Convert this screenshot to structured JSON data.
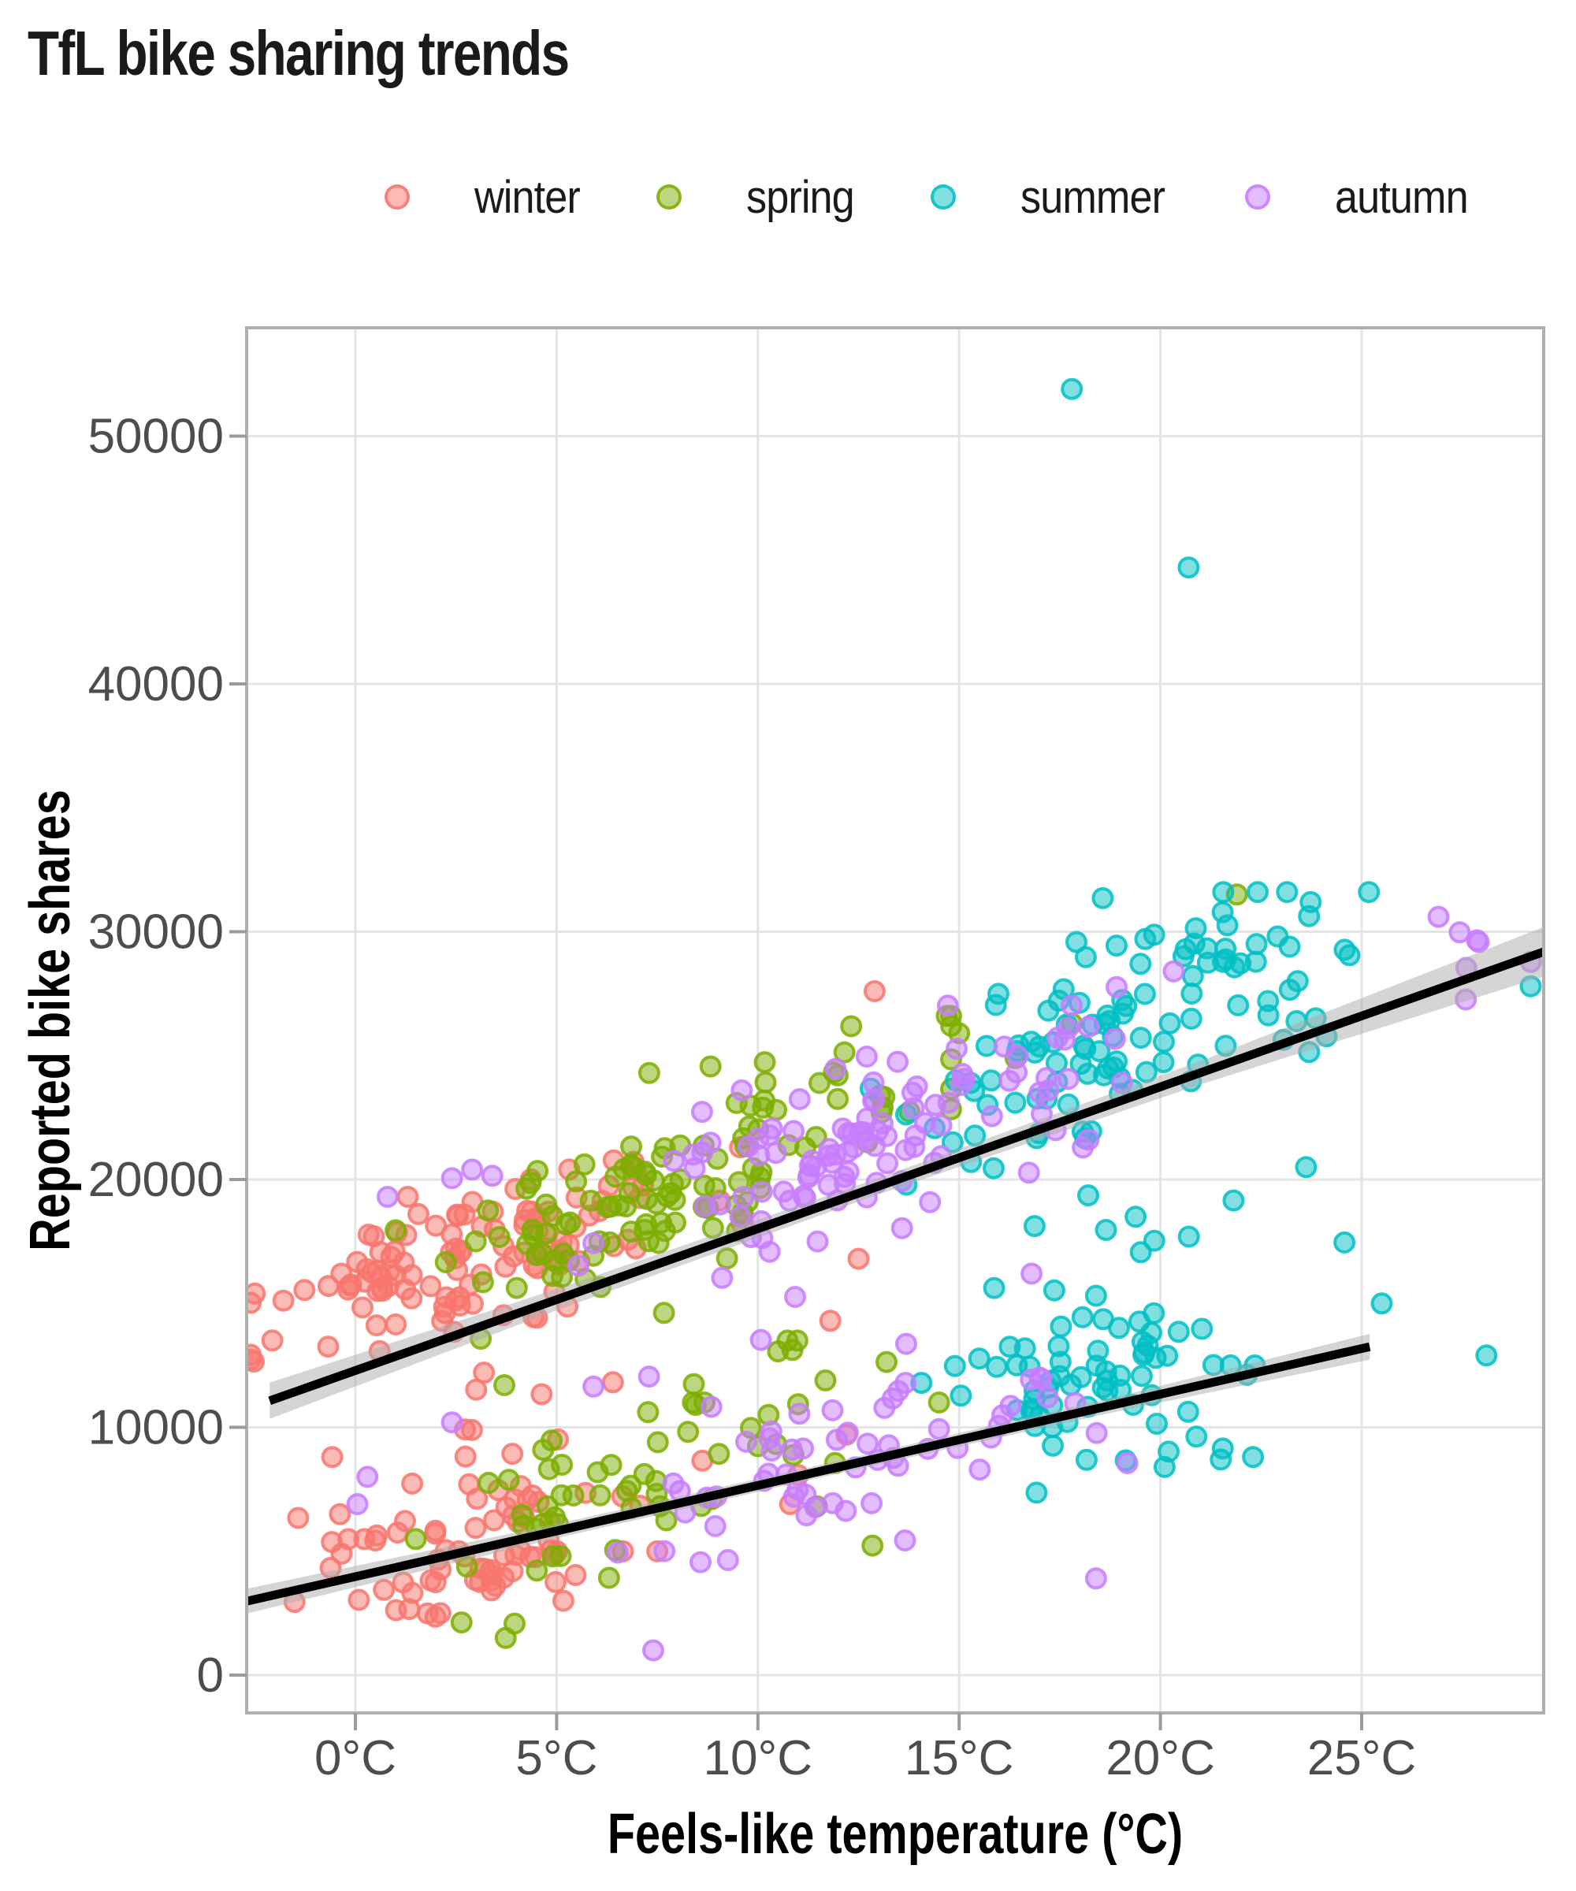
{
  "title": "TfL bike sharing trends",
  "legend": {
    "items": [
      {
        "label": "winter",
        "color": "#F8766D"
      },
      {
        "label": "spring",
        "color": "#7CAE00"
      },
      {
        "label": "summer",
        "color": "#00BFC4"
      },
      {
        "label": "autumn",
        "color": "#C77CFF"
      }
    ]
  },
  "axes": {
    "x": {
      "title": "Feels-like temperature (°C)",
      "tick_labels": [
        "0°C",
        "5°C",
        "10°C",
        "15°C",
        "20°C",
        "25°C"
      ],
      "tick_values": [
        0,
        5,
        10,
        15,
        20,
        25
      ],
      "range": [
        -2.7,
        29.5
      ]
    },
    "y": {
      "title": "Reported bike shares",
      "tick_labels": [
        "0",
        "10000",
        "20000",
        "30000",
        "40000",
        "50000"
      ],
      "tick_values": [
        0,
        10000,
        20000,
        30000,
        40000,
        50000
      ],
      "range": [
        -1500,
        54300
      ]
    }
  },
  "chart_data": {
    "type": "scatter",
    "x_unit": "°C",
    "grid": "major-only",
    "legend_position": "top",
    "description": "Daily TfL bike shares vs feels-like temperature, coloured by season; two clouds (high ~weekday band, low ~weekend band), each with a black linear trend line and grey confidence ribbon.",
    "series": [
      {
        "name": "winter",
        "color": "#F8766D",
        "clusters": [
          {
            "n": 118,
            "t": {
              "mean": 3.0,
              "sd": 2.6,
              "min": -2.6,
              "max": 11.5
            },
            "v": {
              "base": 15300,
              "slope": 520,
              "sd": 1350,
              "min": 11000,
              "max": 21300
            }
          },
          {
            "n": 48,
            "t": {
              "mean": 3.0,
              "sd": 2.5,
              "min": -2.6,
              "max": 11.5
            },
            "v": {
              "base": 5200,
              "slope": 350,
              "sd": 1100,
              "min": 3600,
              "max": 9600
            }
          },
          {
            "n": 30,
            "t": {
              "mean": 2.8,
              "sd": 2.2,
              "min": -2.2,
              "max": 7.5
            },
            "v": {
              "base": 2900,
              "slope": 250,
              "sd": 800,
              "min": 1700,
              "max": 5000
            }
          },
          {
            "n": 8,
            "t": {
              "mean": 3.5,
              "sd": 2.2,
              "min": -1.0,
              "max": 9.0
            },
            "v": {
              "base": 10300,
              "slope": 250,
              "sd": 900,
              "min": 8800,
              "max": 12600
            }
          }
        ],
        "points_extra": [
          [
            12.9,
            27600
          ],
          [
            -2.5,
            15400
          ],
          [
            11.8,
            14300
          ],
          [
            12.5,
            16800
          ],
          [
            10.8,
            6900
          ],
          [
            12.2,
            9700
          ],
          [
            9.6,
            18200
          ]
        ]
      },
      {
        "name": "spring",
        "color": "#7CAE00",
        "clusters": [
          {
            "n": 118,
            "t": {
              "mean": 8.2,
              "sd": 2.8,
              "min": 1.0,
              "max": 14.8
            },
            "v": {
              "base": 13800,
              "slope": 760,
              "sd": 1750,
              "min": 12000,
              "max": 26600
            }
          },
          {
            "n": 52,
            "t": {
              "mean": 7.6,
              "sd": 2.6,
              "min": 1.5,
              "max": 14.5
            },
            "v": {
              "base": 3300,
              "slope": 520,
              "sd": 1600,
              "min": 1500,
              "max": 11000
            }
          },
          {
            "n": 10,
            "t": {
              "mean": 8.0,
              "sd": 3.0,
              "min": 2.0,
              "max": 14.0
            },
            "v": {
              "base": 9000,
              "slope": 300,
              "sd": 1200,
              "min": 6500,
              "max": 13500
            }
          }
        ],
        "points_extra": [
          [
            21.9,
            31500
          ],
          [
            17.8,
            26300
          ],
          [
            16.4,
            24900
          ],
          [
            15.0,
            25900
          ],
          [
            7.3,
            24300
          ],
          [
            3.7,
            11700
          ]
        ]
      },
      {
        "name": "summer",
        "color": "#00BFC4",
        "clusters": [
          {
            "n": 112,
            "t": {
              "mean": 19.3,
              "sd": 3.0,
              "min": 12.8,
              "max": 29.3
            },
            "v": {
              "base": 10800,
              "slope": 790,
              "sd": 2100,
              "min": 14500,
              "max": 31600
            }
          },
          {
            "n": 54,
            "t": {
              "mean": 17.9,
              "sd": 1.7,
              "min": 13.5,
              "max": 22.5
            },
            "v": {
              "base": 3900,
              "slope": 460,
              "sd": 1300,
              "min": 5200,
              "max": 15500
            }
          },
          {
            "n": 14,
            "t": {
              "mean": 19.0,
              "sd": 2.5,
              "min": 13.5,
              "max": 25.5
            },
            "v": {
              "base": 13500,
              "slope": 200,
              "sd": 1800,
              "min": 13800,
              "max": 20500
            }
          },
          {
            "n": 12,
            "t": {
              "mean": 19.5,
              "sd": 3.4,
              "min": 13.0,
              "max": 28.6
            },
            "v": {
              "base": 1800,
              "slope": 380,
              "sd": 1900,
              "min": 4300,
              "max": 12500
            }
          }
        ],
        "points_extra": [
          [
            17.8,
            51900
          ],
          [
            20.7,
            44700
          ],
          [
            21.5,
            8700
          ],
          [
            25.5,
            15000
          ],
          [
            28.1,
            12900
          ],
          [
            29.2,
            27800
          ],
          [
            22.3,
            8800
          ]
        ]
      },
      {
        "name": "autumn",
        "color": "#C77CFF",
        "clusters": [
          {
            "n": 112,
            "t": {
              "mean": 13.2,
              "sd": 3.0,
              "min": 4.8,
              "max": 21.0
            },
            "v": {
              "base": 13200,
              "slope": 640,
              "sd": 1800,
              "min": 11500,
              "max": 28400
            }
          },
          {
            "n": 54,
            "t": {
              "mean": 12.4,
              "sd": 2.8,
              "min": 4.5,
              "max": 19.5
            },
            "v": {
              "base": 3300,
              "slope": 430,
              "sd": 1400,
              "min": 1200,
              "max": 12000
            }
          },
          {
            "n": 7,
            "t": {
              "mean": 27.2,
              "sd": 1.1,
              "min": 24.8,
              "max": 29.3
            },
            "v": {
              "base": 28700,
              "slope": 0,
              "sd": 1100,
              "min": 26500,
              "max": 30600
            }
          },
          {
            "n": 8,
            "t": {
              "mean": 10.0,
              "sd": 3.5,
              "min": 3.0,
              "max": 17.0
            },
            "v": {
              "base": 9500,
              "slope": 250,
              "sd": 1200,
              "min": 7000,
              "max": 14000
            }
          }
        ],
        "points_extra": [
          [
            0.8,
            19300
          ],
          [
            2.4,
            20050
          ],
          [
            3.4,
            20150
          ],
          [
            2.9,
            20400
          ],
          [
            18.4,
            3900
          ],
          [
            7.4,
            1000
          ],
          [
            0.3,
            8000
          ],
          [
            0.05,
            6900
          ],
          [
            2.4,
            10200
          ],
          [
            16.8,
            16200
          ]
        ]
      }
    ],
    "trend_lines": [
      {
        "name": "upper-band-fit",
        "x1": -2.13,
        "y1": 11070,
        "x2": 29.54,
        "y2": 29200,
        "ci_halfwidth": [
          [
            -2.13,
            730
          ],
          [
            5,
            430
          ],
          [
            13,
            330
          ],
          [
            21,
            470
          ],
          [
            29.54,
            1000
          ]
        ]
      },
      {
        "name": "lower-band-fit",
        "x1": -2.68,
        "y1": 2990,
        "x2": 25.2,
        "y2": 13250,
        "ci_halfwidth": [
          [
            -2.68,
            500
          ],
          [
            5,
            290
          ],
          [
            12,
            250
          ],
          [
            19,
            300
          ],
          [
            25.2,
            520
          ]
        ]
      }
    ],
    "notable_outliers": [
      [
        17.8,
        51900
      ],
      [
        20.7,
        44700
      ]
    ]
  },
  "style": {
    "grid_color": "#E4E4E4",
    "border_color": "#AFAFAF",
    "tick_color": "#9A9A9A",
    "tick_label_color": "#4D4D4D",
    "axis_title_color": "#000000",
    "trend_color": "#000000",
    "ribbon_color": "#ABABAB",
    "background": "#FFFFFF"
  }
}
